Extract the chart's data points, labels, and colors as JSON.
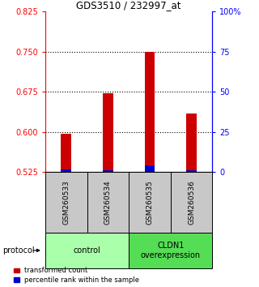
{
  "title": "GDS3510 / 232997_at",
  "samples": [
    "GSM260533",
    "GSM260534",
    "GSM260535",
    "GSM260536"
  ],
  "base": 0.525,
  "red_tops": [
    0.596,
    0.672,
    0.75,
    0.635
  ],
  "blue_tops": [
    0.53,
    0.529,
    0.537,
    0.529
  ],
  "ylim_left": [
    0.525,
    0.825
  ],
  "yticks_left": [
    0.525,
    0.6,
    0.675,
    0.75,
    0.825
  ],
  "yticks_right": [
    0,
    25,
    50,
    75,
    100
  ],
  "ylim_right": [
    0,
    100
  ],
  "groups": [
    {
      "label": "control",
      "samples": [
        0,
        1
      ],
      "color": "#aaffaa"
    },
    {
      "label": "CLDN1\noverexpression",
      "samples": [
        2,
        3
      ],
      "color": "#55dd55"
    }
  ],
  "red_color": "#cc0000",
  "blue_color": "#0000cc",
  "bar_width": 0.25,
  "background_color": "#ffffff",
  "plot_bg": "#ffffff",
  "label_area_color": "#c8c8c8",
  "dotted_yticks": [
    0.6,
    0.675,
    0.75
  ]
}
